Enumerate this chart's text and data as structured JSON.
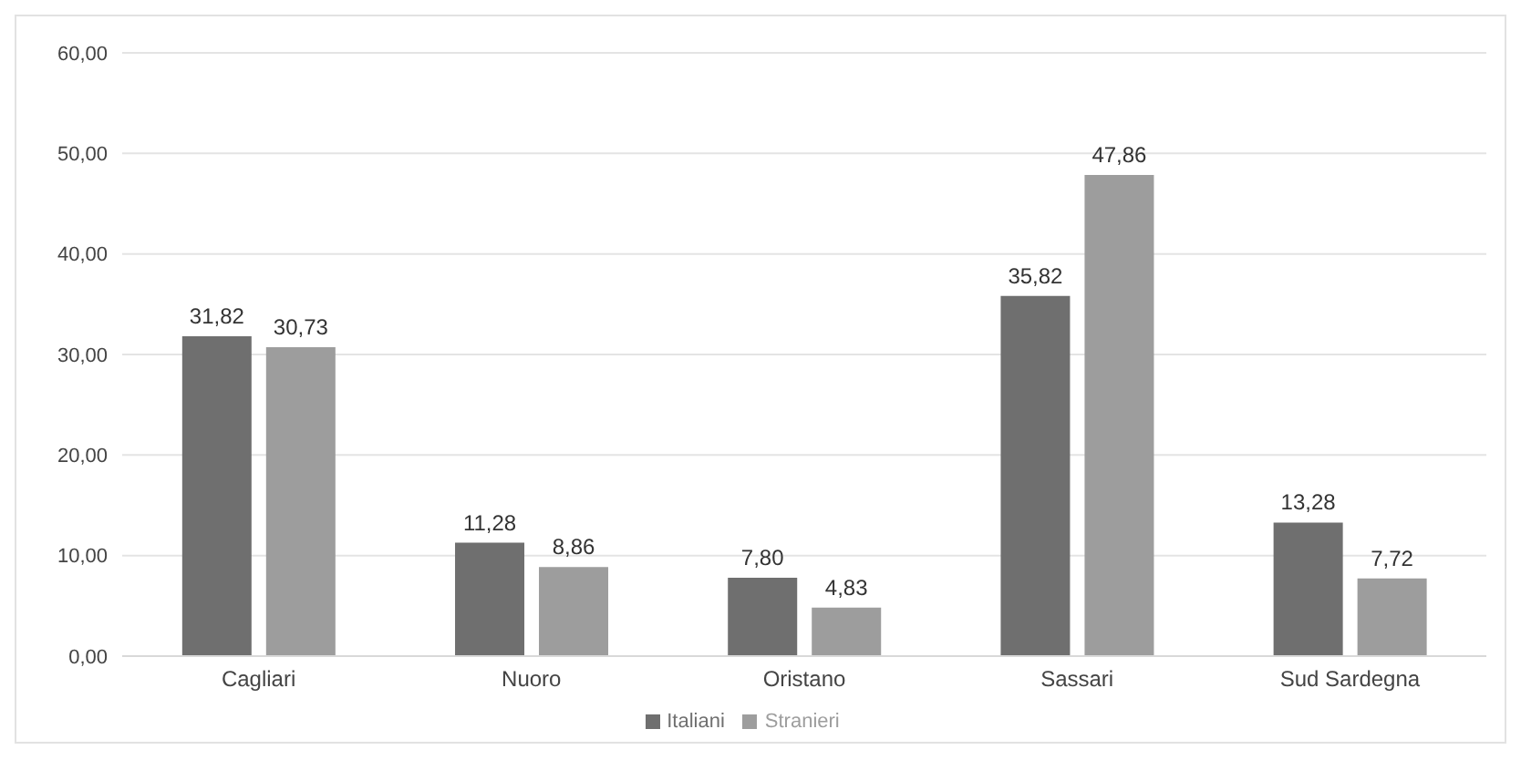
{
  "chart_data": {
    "type": "bar",
    "categories": [
      "Cagliari",
      "Nuoro",
      "Oristano",
      "Sassari",
      "Sud Sardegna"
    ],
    "series": [
      {
        "name": "Italiani",
        "color": "#6f6f6f",
        "values": [
          31.82,
          11.28,
          7.8,
          35.82,
          13.28
        ],
        "value_labels": [
          "31,82",
          "11,28",
          "7,80",
          "35,82",
          "13,28"
        ]
      },
      {
        "name": "Stranieri",
        "color": "#9d9d9d",
        "values": [
          30.73,
          8.86,
          4.83,
          47.86,
          7.72
        ],
        "value_labels": [
          "30,73",
          "8,86",
          "4,83",
          "47,86",
          "7,72"
        ]
      }
    ],
    "ylim": [
      0,
      60
    ],
    "yticks": [
      {
        "value": 0,
        "label": "0,00"
      },
      {
        "value": 10,
        "label": "10,00"
      },
      {
        "value": 20,
        "label": "20,00"
      },
      {
        "value": 30,
        "label": "30,00"
      },
      {
        "value": 40,
        "label": "40,00"
      },
      {
        "value": 50,
        "label": "50,00"
      },
      {
        "value": 60,
        "label": "60,00"
      }
    ],
    "grid": "y",
    "legend": "bottom"
  }
}
